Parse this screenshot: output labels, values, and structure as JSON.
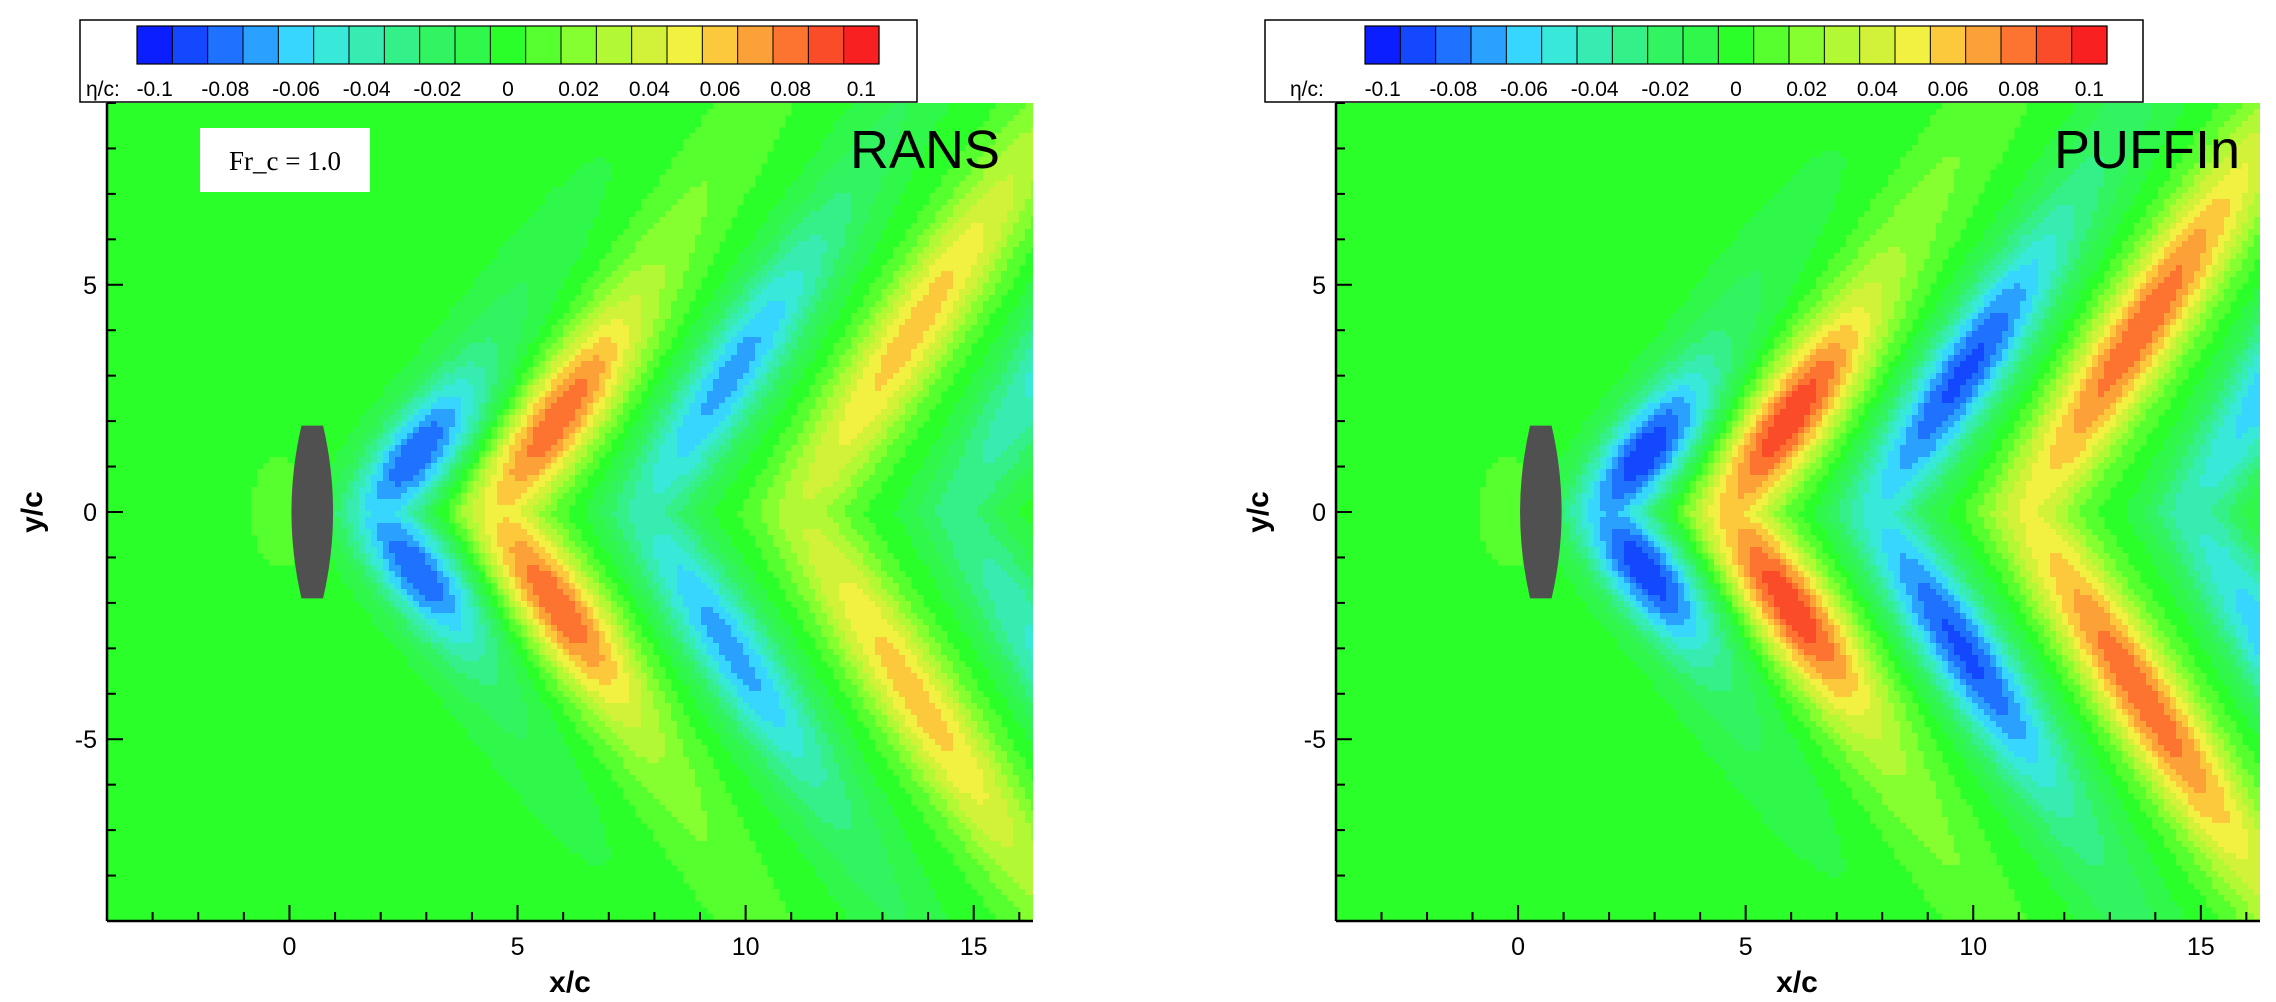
{
  "chart_data": [
    {
      "type": "heatmap",
      "title": "RANS",
      "annotation": "Fr_c = 1.0",
      "xlabel": "x/c",
      "ylabel": "y/c",
      "xlim": [
        -4,
        16.3
      ],
      "ylim": [
        -9,
        9
      ],
      "xticks": [
        0,
        5,
        10,
        15
      ],
      "yticks": [
        -5,
        0,
        5
      ],
      "colorbar": {
        "label": "η/c:",
        "range": [
          -0.105,
          0.105
        ],
        "ticks": [
          "-0.1",
          "-0.08",
          "-0.06",
          "-0.04",
          "-0.02",
          "0",
          "0.02",
          "0.04",
          "0.06",
          "0.08",
          "0.1"
        ],
        "colors": [
          "#0a1eff",
          "#1448ff",
          "#1e72ff",
          "#2aa0ff",
          "#36d6ff",
          "#38e8d8",
          "#36ecb0",
          "#34f088",
          "#32f460",
          "#30f84a",
          "#2aff2a",
          "#56ff2e",
          "#86ff30",
          "#b2f834",
          "#d2f23a",
          "#f2f040",
          "#fcc83c",
          "#fca038",
          "#fc7430",
          "#fa4c28",
          "#f82020"
        ]
      },
      "body": {
        "shape": "lens",
        "x_range": [
          0,
          1
        ],
        "half_width": 1.9,
        "color": "#505050"
      },
      "field": {
        "description_values": "free-surface elevation eta/c in V-shaped Kelvin wave crests",
        "features": [
          {
            "x": 2.0,
            "amplitude": -0.09
          },
          {
            "x": 4.6,
            "amplitude": 0.09
          },
          {
            "x": 7.8,
            "amplitude": -0.075
          },
          {
            "x": 11.2,
            "amplitude": 0.065
          },
          {
            "x": 14.6,
            "amplitude": -0.06
          }
        ]
      }
    },
    {
      "type": "heatmap",
      "title": "PUFFIn",
      "xlabel": "x/c",
      "ylabel": "y/c",
      "xlim": [
        -4,
        16.3
      ],
      "ylim": [
        -9,
        9
      ],
      "xticks": [
        0,
        5,
        10,
        15
      ],
      "yticks": [
        -5,
        0,
        5
      ],
      "colorbar": {
        "label": "η/c:",
        "range": [
          -0.105,
          0.105
        ],
        "ticks": [
          "-0.1",
          "-0.08",
          "-0.06",
          "-0.04",
          "-0.02",
          "0",
          "0.02",
          "0.04",
          "0.06",
          "0.08",
          "0.1"
        ],
        "colors": [
          "#0a1eff",
          "#1448ff",
          "#1e72ff",
          "#2aa0ff",
          "#36d6ff",
          "#38e8d8",
          "#36ecb0",
          "#34f088",
          "#32f460",
          "#30f84a",
          "#2aff2a",
          "#56ff2e",
          "#86ff30",
          "#b2f834",
          "#d2f23a",
          "#f2f040",
          "#fcc83c",
          "#fca038",
          "#fc7430",
          "#fa4c28",
          "#f82020"
        ]
      },
      "body": {
        "shape": "lens",
        "x_range": [
          0,
          1
        ],
        "half_width": 1.9,
        "color": "#505050"
      },
      "field": {
        "description_values": "free-surface elevation eta/c in V-shaped Kelvin wave crests",
        "features": [
          {
            "x": 2.0,
            "amplitude": -0.1
          },
          {
            "x": 4.7,
            "amplitude": 0.1
          },
          {
            "x": 7.9,
            "amplitude": -0.095
          },
          {
            "x": 11.2,
            "amplitude": 0.09
          },
          {
            "x": 14.8,
            "amplitude": -0.085
          }
        ]
      }
    }
  ]
}
